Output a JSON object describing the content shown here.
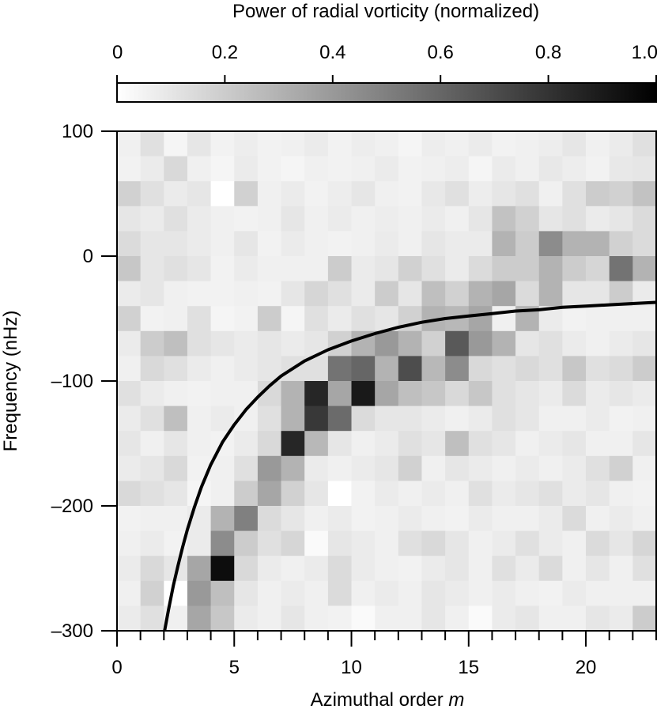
{
  "chart_data": {
    "type": "heatmap",
    "colorbar": {
      "title": "Power of radial vorticity (normalized)",
      "ticks": [
        0,
        0.2,
        0.4,
        0.6,
        0.8,
        1.0
      ],
      "tick_labels": [
        "0",
        "0.2",
        "0.4",
        "0.6",
        "0.8",
        "1.0"
      ],
      "range": [
        0,
        1
      ],
      "colormap": [
        "#ffffff",
        "#000000"
      ],
      "placement": "top"
    },
    "xaxis": {
      "label_text": "Azimuthal order ",
      "label_var": "m",
      "range": [
        0,
        23
      ],
      "major_ticks": [
        0,
        5,
        10,
        15,
        20
      ],
      "minor_step": 1
    },
    "yaxis": {
      "label": "Frequency (nHz)",
      "range": [
        -300,
        100
      ],
      "ticks": [
        -300,
        -200,
        -100,
        0,
        100
      ],
      "tick_labels": [
        "–300",
        "–200",
        "–100",
        "0",
        "100"
      ]
    },
    "grid": false,
    "bin_width_m": 1,
    "bin_height_nhz": 20,
    "bin_centers_nhz": [
      90,
      70,
      50,
      30,
      10,
      -10,
      -30,
      -50,
      -70,
      -90,
      -110,
      -130,
      -150,
      -170,
      -190,
      -210,
      -230,
      -250,
      -270,
      -290
    ],
    "m_bins": [
      0,
      1,
      2,
      3,
      4,
      5,
      6,
      7,
      8,
      9,
      10,
      11,
      12,
      13,
      14,
      15,
      16,
      17,
      18,
      19,
      20,
      21,
      22
    ],
    "power": [
      [
        0.06,
        0.12,
        0.04,
        0.1,
        0.05,
        0.07,
        0.05,
        0.06,
        0.08,
        0.05,
        0.07,
        0.06,
        0.04,
        0.07,
        0.06,
        0.08,
        0.05,
        0.06,
        0.07,
        0.1,
        0.06,
        0.08,
        0.12
      ],
      [
        0.05,
        0.08,
        0.15,
        0.06,
        0.04,
        0.08,
        0.05,
        0.04,
        0.06,
        0.05,
        0.06,
        0.08,
        0.05,
        0.06,
        0.07,
        0.04,
        0.08,
        0.06,
        0.09,
        0.07,
        0.05,
        0.09,
        0.1
      ],
      [
        0.18,
        0.12,
        0.08,
        0.1,
        0.0,
        0.18,
        0.06,
        0.08,
        0.05,
        0.07,
        0.1,
        0.06,
        0.05,
        0.09,
        0.12,
        0.07,
        0.1,
        0.12,
        0.06,
        0.12,
        0.2,
        0.18,
        0.24
      ],
      [
        0.1,
        0.08,
        0.12,
        0.08,
        0.06,
        0.05,
        0.06,
        0.1,
        0.06,
        0.08,
        0.06,
        0.07,
        0.06,
        0.08,
        0.06,
        0.1,
        0.24,
        0.18,
        0.1,
        0.12,
        0.08,
        0.1,
        0.14
      ],
      [
        0.14,
        0.1,
        0.1,
        0.08,
        0.06,
        0.1,
        0.05,
        0.08,
        0.06,
        0.05,
        0.06,
        0.08,
        0.06,
        0.1,
        0.08,
        0.08,
        0.3,
        0.2,
        0.45,
        0.3,
        0.3,
        0.18,
        0.14
      ],
      [
        0.22,
        0.1,
        0.12,
        0.1,
        0.05,
        0.08,
        0.06,
        0.06,
        0.06,
        0.2,
        0.08,
        0.1,
        0.18,
        0.12,
        0.08,
        0.14,
        0.2,
        0.2,
        0.3,
        0.2,
        0.16,
        0.55,
        0.3
      ],
      [
        0.08,
        0.1,
        0.06,
        0.05,
        0.05,
        0.06,
        0.05,
        0.1,
        0.16,
        0.12,
        0.08,
        0.2,
        0.1,
        0.25,
        0.18,
        0.3,
        0.35,
        0.14,
        0.3,
        0.1,
        0.1,
        0.2,
        0.08
      ],
      [
        0.18,
        0.05,
        0.06,
        0.12,
        0.04,
        0.05,
        0.2,
        0.04,
        0.12,
        0.08,
        0.12,
        0.1,
        0.18,
        0.3,
        0.28,
        0.35,
        0.06,
        0.3,
        0.08,
        0.05,
        0.06,
        0.06,
        0.06
      ],
      [
        0.08,
        0.2,
        0.25,
        0.12,
        0.1,
        0.08,
        0.1,
        0.08,
        0.1,
        0.18,
        0.3,
        0.4,
        0.3,
        0.18,
        0.65,
        0.4,
        0.3,
        0.1,
        0.12,
        0.08,
        0.06,
        0.08,
        0.1
      ],
      [
        0.06,
        0.15,
        0.12,
        0.08,
        0.06,
        0.08,
        0.1,
        0.12,
        0.12,
        0.55,
        0.6,
        0.3,
        0.7,
        0.28,
        0.45,
        0.15,
        0.12,
        0.15,
        0.12,
        0.22,
        0.12,
        0.14,
        0.2
      ],
      [
        0.12,
        0.08,
        0.06,
        0.05,
        0.06,
        0.06,
        0.15,
        0.3,
        0.85,
        0.35,
        0.9,
        0.35,
        0.25,
        0.22,
        0.15,
        0.22,
        0.12,
        0.1,
        0.08,
        0.14,
        0.08,
        0.1,
        0.08
      ],
      [
        0.08,
        0.12,
        0.25,
        0.06,
        0.08,
        0.06,
        0.12,
        0.3,
        0.78,
        0.58,
        0.14,
        0.1,
        0.1,
        0.08,
        0.06,
        0.08,
        0.12,
        0.1,
        0.06,
        0.06,
        0.08,
        0.05,
        0.06
      ],
      [
        0.1,
        0.06,
        0.1,
        0.06,
        0.05,
        0.08,
        0.15,
        0.85,
        0.28,
        0.1,
        0.06,
        0.08,
        0.12,
        0.1,
        0.25,
        0.12,
        0.1,
        0.06,
        0.08,
        0.1,
        0.06,
        0.06,
        0.1
      ],
      [
        0.08,
        0.1,
        0.15,
        0.05,
        0.06,
        0.12,
        0.4,
        0.3,
        0.08,
        0.06,
        0.08,
        0.1,
        0.18,
        0.06,
        0.1,
        0.08,
        0.06,
        0.08,
        0.06,
        0.08,
        0.12,
        0.18,
        0.06
      ],
      [
        0.15,
        0.12,
        0.1,
        0.04,
        0.06,
        0.2,
        0.35,
        0.18,
        0.1,
        0.0,
        0.05,
        0.08,
        0.06,
        0.08,
        0.06,
        0.12,
        0.08,
        0.1,
        0.12,
        0.08,
        0.1,
        0.06,
        0.05
      ],
      [
        0.05,
        0.06,
        0.06,
        0.08,
        0.3,
        0.5,
        0.14,
        0.1,
        0.06,
        0.08,
        0.05,
        0.06,
        0.08,
        0.06,
        0.05,
        0.08,
        0.06,
        0.06,
        0.08,
        0.14,
        0.06,
        0.08,
        0.06
      ],
      [
        0.06,
        0.08,
        0.05,
        0.08,
        0.45,
        0.2,
        0.12,
        0.16,
        0.02,
        0.1,
        0.08,
        0.06,
        0.12,
        0.15,
        0.1,
        0.06,
        0.08,
        0.12,
        0.08,
        0.06,
        0.14,
        0.1,
        0.16
      ],
      [
        0.08,
        0.15,
        0.1,
        0.35,
        0.95,
        0.15,
        0.08,
        0.06,
        0.08,
        0.14,
        0.08,
        0.06,
        0.05,
        0.08,
        0.1,
        0.06,
        0.12,
        0.08,
        0.14,
        0.06,
        0.1,
        0.06,
        0.12
      ],
      [
        0.06,
        0.18,
        0.0,
        0.4,
        0.25,
        0.1,
        0.06,
        0.08,
        0.06,
        0.14,
        0.06,
        0.08,
        0.06,
        0.1,
        0.08,
        0.06,
        0.08,
        0.06,
        0.05,
        0.08,
        0.06,
        0.06,
        0.06
      ],
      [
        0.08,
        0.12,
        0.06,
        0.35,
        0.22,
        0.08,
        0.06,
        0.1,
        0.06,
        0.05,
        0.02,
        0.06,
        0.06,
        0.1,
        0.06,
        0.02,
        0.08,
        0.1,
        0.06,
        0.06,
        0.1,
        0.08,
        0.2
      ]
    ],
    "curve": {
      "x": [
        2.03,
        2.2,
        2.4,
        2.6,
        2.8,
        3.0,
        3.3,
        3.6,
        4.0,
        4.5,
        5.0,
        5.5,
        6.0,
        6.5,
        7.0,
        8.0,
        9.0,
        10.0,
        11.0,
        12.0,
        13.0,
        14.0,
        15.0,
        16.0,
        17.0,
        18.0,
        19.0,
        20.0,
        21.0,
        22.0,
        23.0
      ],
      "y": [
        -300,
        -283,
        -264,
        -248,
        -233,
        -219,
        -201,
        -185,
        -167,
        -149,
        -135,
        -123,
        -113,
        -104,
        -96,
        -84,
        -75,
        -68,
        -62,
        -57,
        -53,
        -50,
        -48,
        -46,
        -44,
        -43,
        -41,
        -40,
        -39,
        -38,
        -37
      ],
      "color": "#000000"
    }
  }
}
